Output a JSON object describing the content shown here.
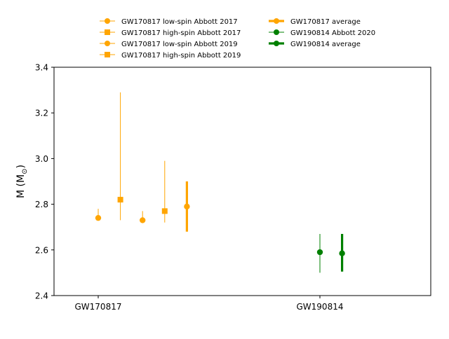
{
  "chart_data": {
    "type": "scatter",
    "xlabel": "",
    "ylabel_main": "M (M",
    "ylabel_sub": "⊙",
    "ylabel_close": ")",
    "ylim": [
      2.4,
      3.4
    ],
    "yticks": [
      2.4,
      2.6,
      2.8,
      3.0,
      3.2,
      3.4
    ],
    "ytick_labels": [
      "2.4",
      "2.6",
      "2.8",
      "3.0",
      "3.2",
      "3.4"
    ],
    "categories": [
      "GW170817",
      "GW190814"
    ],
    "grid": false,
    "legend_position": "top",
    "colors": {
      "orange": "#ffa500",
      "green": "#008000"
    },
    "series": [
      {
        "name": "GW170817 low-spin Abbott 2017",
        "category": "GW170817",
        "offset": 0,
        "value": 2.74,
        "lower": 2.73,
        "upper": 2.78,
        "marker": "circle",
        "color": "#ffa500",
        "thick": false
      },
      {
        "name": "GW170817 high-spin Abbott 2017",
        "category": "GW170817",
        "offset": 1,
        "value": 2.82,
        "lower": 2.73,
        "upper": 3.29,
        "marker": "square",
        "color": "#ffa500",
        "thick": false
      },
      {
        "name": "GW170817 low-spin Abbott 2019",
        "category": "GW170817",
        "offset": 2,
        "value": 2.73,
        "lower": 2.72,
        "upper": 2.77,
        "marker": "circle",
        "color": "#ffa500",
        "thick": false
      },
      {
        "name": "GW170817 high-spin Abbott 2019",
        "category": "GW170817",
        "offset": 3,
        "value": 2.77,
        "lower": 2.72,
        "upper": 2.99,
        "marker": "square",
        "color": "#ffa500",
        "thick": false
      },
      {
        "name": "GW170817 average",
        "category": "GW170817",
        "offset": 4,
        "value": 2.79,
        "lower": 2.68,
        "upper": 2.9,
        "marker": "circle",
        "color": "#ffa500",
        "thick": true
      },
      {
        "name": "GW190814 Abbott 2020",
        "category": "GW190814",
        "offset": 0,
        "value": 2.59,
        "lower": 2.5,
        "upper": 2.67,
        "marker": "circle",
        "color": "#008000",
        "thick": false
      },
      {
        "name": "GW190814 average",
        "category": "GW190814",
        "offset": 1,
        "value": 2.585,
        "lower": 2.505,
        "upper": 2.67,
        "marker": "circle",
        "color": "#008000",
        "thick": true
      }
    ]
  }
}
